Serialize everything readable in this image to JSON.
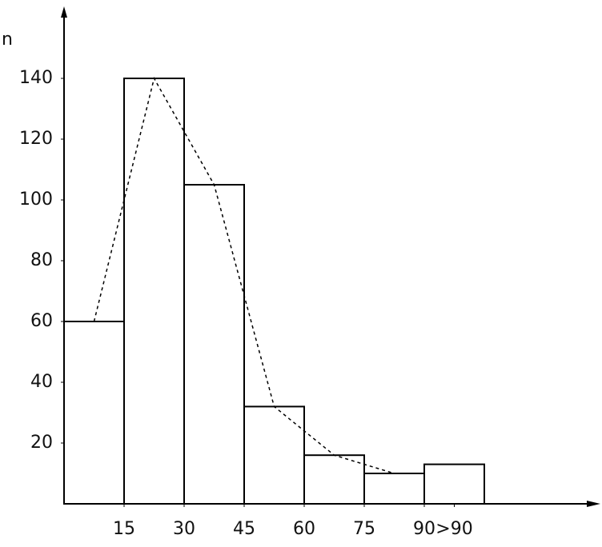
{
  "chart_data": {
    "type": "histogram",
    "y_label": "n",
    "bins": [
      0,
      15,
      30,
      45,
      60,
      75,
      90,
      105
    ],
    "values": [
      60,
      140,
      105,
      32,
      16,
      10,
      13
    ],
    "color": "#000000",
    "polygon": {
      "x": [
        7.5,
        22.5,
        37.5,
        52.5,
        67.5,
        82.5
      ],
      "values": [
        60,
        140,
        105,
        32,
        16,
        10
      ],
      "dashed": true
    },
    "xlim": [
      0,
      133
    ],
    "ylim": [
      0,
      160
    ],
    "xticks": [
      15,
      30,
      45,
      60,
      75,
      90,
      {
        "value": 97.5,
        "label": ">90"
      }
    ],
    "yticks": [
      20,
      40,
      60,
      80,
      100,
      120,
      140
    ]
  }
}
